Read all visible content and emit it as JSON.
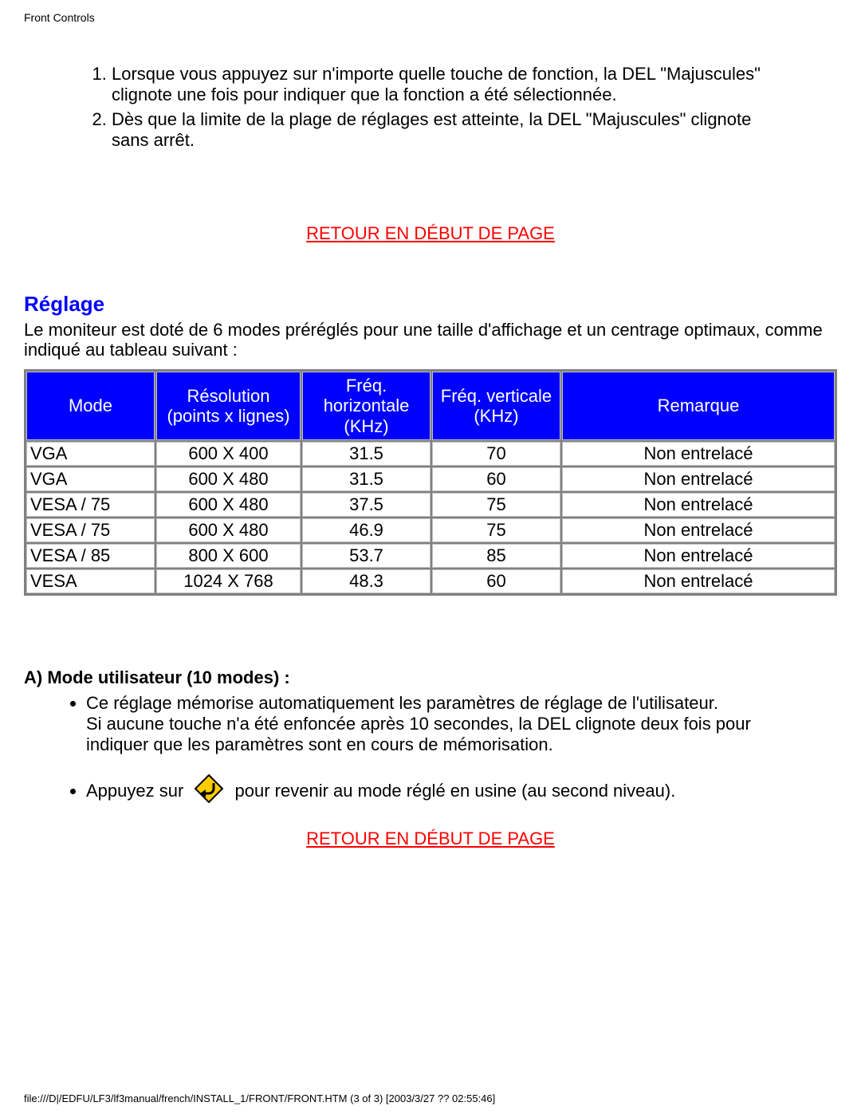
{
  "header": {
    "title": "Front Controls"
  },
  "intro_list": [
    "Lorsque vous appuyez sur n'importe quelle touche de fonction, la DEL \"Majuscules\" clignote une fois pour indiquer que la fonction a été sélectionnée.",
    "Dès que la limite de la plage de réglages est atteinte, la DEL \"Majuscules\" clignote sans arrêt."
  ],
  "links": {
    "return_top": "RETOUR EN DÉBUT DE PAGE"
  },
  "section": {
    "title": "Réglage",
    "lead": "Le moniteur est doté de 6 modes préréglés pour une taille d'affichage et un centrage optimaux, comme indiqué au tableau suivant :"
  },
  "table": {
    "header_bg": "#0000ff",
    "header_fg": "#ffffff",
    "cell_bg": "#ffffff",
    "border_color": "#808080",
    "columns": [
      {
        "line1": "Mode",
        "line2": ""
      },
      {
        "line1": "Résolution",
        "line2": "(points x lignes)"
      },
      {
        "line1": "Fréq. horizontale",
        "line2": "(KHz)"
      },
      {
        "line1": "Fréq. verticale",
        "line2": "(KHz)"
      },
      {
        "line1": "Remarque",
        "line2": ""
      }
    ],
    "col_widths": [
      "16%",
      "18%",
      "16%",
      "16%",
      "34%"
    ],
    "rows": [
      [
        "VGA",
        "600 X 400",
        "31.5",
        "70",
        "Non entrelacé"
      ],
      [
        "VGA",
        "600 X 480",
        "31.5",
        "60",
        "Non entrelacé"
      ],
      [
        "VESA / 75",
        "600 X 480",
        "37.5",
        "75",
        "Non entrelacé"
      ],
      [
        "VESA / 75",
        "600 X 480",
        "46.9",
        "75",
        "Non entrelacé"
      ],
      [
        "VESA / 85",
        "800 X 600",
        "53.7",
        "85",
        "Non entrelacé"
      ],
      [
        "VESA",
        "1024 X 768",
        "48.3",
        "60",
        "Non entrelacé"
      ]
    ]
  },
  "usermode": {
    "heading": "A) Mode utilisateur (10 modes) :",
    "bullet1_line1": "Ce réglage mémorise automatiquement les paramètres de réglage de l'utilisateur.",
    "bullet1_line2": "Si aucune touche n'a été enfoncée après 10 secondes, la DEL clignote deux fois pour indiquer que les paramètres sont en cours de mémorisation.",
    "bullet2_before": "Appuyez sur ",
    "bullet2_after": " pour revenir au mode réglé en usine (au second niveau).",
    "icon_name": "return-arrow-icon",
    "icon_colors": {
      "fill": "#ffcc00",
      "border": "#000000",
      "arrow": "#000000"
    }
  },
  "footer": {
    "text": "file:///D|/EDFU/LF3/lf3manual/french/INSTALL_1/FRONT/FRONT.HTM (3 of 3) [2003/3/27 ?? 02:55:46]"
  }
}
